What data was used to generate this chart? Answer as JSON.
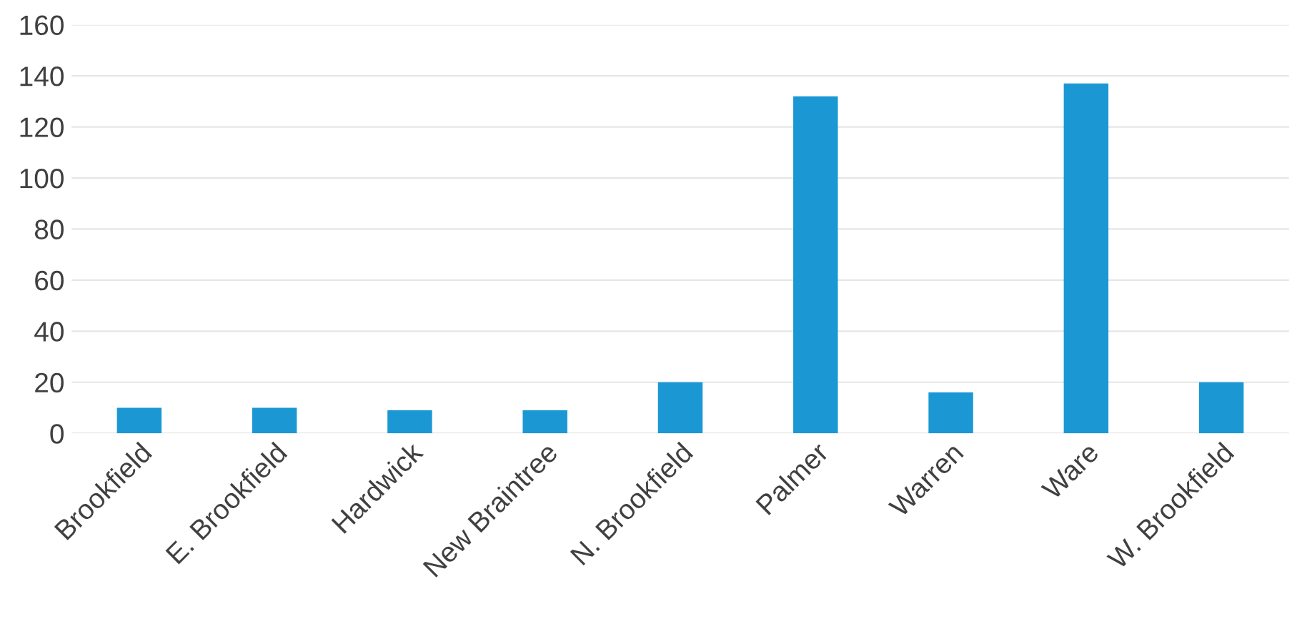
{
  "chart_data": {
    "type": "bar",
    "categories": [
      "Brookfield",
      "E. Brookfield",
      "Hardwick",
      "New Braintree",
      "N. Brookfield",
      "Palmer",
      "Warren",
      "Ware",
      "W. Brookfield"
    ],
    "values": [
      10,
      10,
      9,
      9,
      20,
      132,
      16,
      137,
      20
    ],
    "color": "#1b98d4",
    "ylim": [
      0,
      160
    ],
    "yticks": [
      0,
      20,
      40,
      60,
      80,
      100,
      120,
      140,
      160
    ],
    "grid": "y"
  }
}
